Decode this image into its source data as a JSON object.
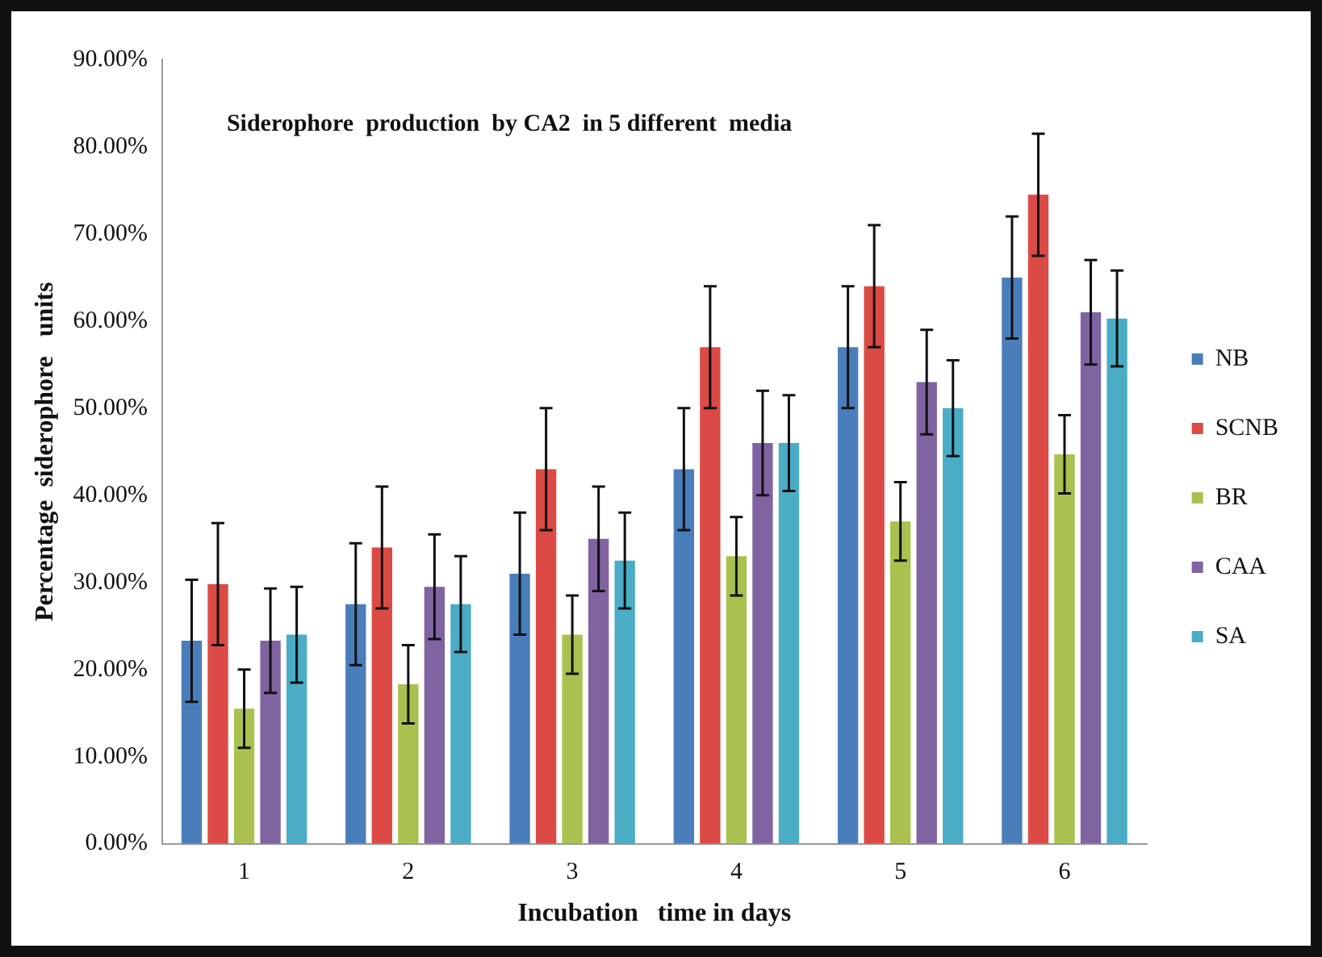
{
  "chart_data": {
    "type": "bar",
    "title": "Siderophore  production  by CA2  in 5 different  media",
    "xlabel": "Incubation   time in days",
    "ylabel": "Percentage  siderophore   units",
    "categories": [
      "1",
      "2",
      "3",
      "4",
      "5",
      "6"
    ],
    "series": [
      {
        "name": "NB",
        "color": "#4a7ebb",
        "values": [
          23.3,
          27.5,
          31,
          43,
          57,
          65
        ],
        "errors": [
          7,
          7,
          7,
          7,
          7,
          7
        ]
      },
      {
        "name": "SCNB",
        "color": "#dc4a45",
        "values": [
          29.8,
          34,
          43,
          57,
          64,
          74.5
        ],
        "errors": [
          7,
          7,
          7,
          7,
          7,
          7
        ]
      },
      {
        "name": "BR",
        "color": "#a9c24f",
        "values": [
          15.5,
          18.3,
          24,
          33,
          37,
          44.7
        ],
        "errors": [
          4.5,
          4.5,
          4.5,
          4.5,
          4.5,
          4.5
        ]
      },
      {
        "name": "CAA",
        "color": "#8064a2",
        "values": [
          23.3,
          29.5,
          35,
          46,
          53,
          61
        ],
        "errors": [
          6,
          6,
          6,
          6,
          6,
          6
        ]
      },
      {
        "name": "SA",
        "color": "#4bacc6",
        "values": [
          24,
          27.5,
          32.5,
          46,
          50,
          60.3
        ],
        "errors": [
          5.5,
          5.5,
          5.5,
          5.5,
          5.5,
          5.5
        ]
      }
    ],
    "ylim": [
      0,
      90
    ],
    "yticks": [
      {
        "value": 0,
        "label": "0.00%"
      },
      {
        "value": 10,
        "label": "10.00%"
      },
      {
        "value": 20,
        "label": "20.00%"
      },
      {
        "value": 30,
        "label": "30.00%"
      },
      {
        "value": 40,
        "label": "40.00%"
      },
      {
        "value": 50,
        "label": "50.00%"
      },
      {
        "value": 60,
        "label": "60.00%"
      },
      {
        "value": 70,
        "label": "70.00%"
      },
      {
        "value": 80,
        "label": "80.00%"
      },
      {
        "value": 90,
        "label": "90.00%"
      }
    ],
    "grid": false,
    "legend": "right"
  }
}
